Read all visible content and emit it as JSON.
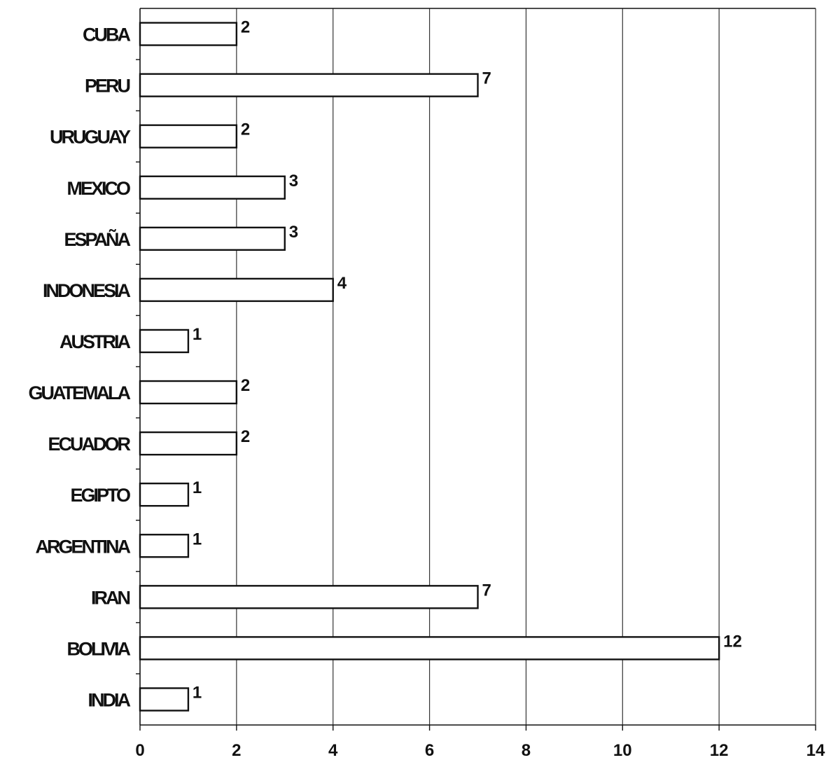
{
  "chart_data": {
    "type": "bar",
    "orientation": "horizontal",
    "categories": [
      "CUBA",
      "PERU",
      "URUGUAY",
      "MEXICO",
      "ESPAÑA",
      "INDONESIA",
      "AUSTRIA",
      "GUATEMALA",
      "ECUADOR",
      "EGIPTO",
      "ARGENTINA",
      "IRAN",
      "BOLIVIA",
      "INDIA"
    ],
    "values": [
      2,
      7,
      2,
      3,
      3,
      4,
      1,
      2,
      2,
      1,
      1,
      7,
      12,
      1
    ],
    "data_labels": [
      "2",
      "7",
      "2",
      "3",
      "3",
      "4",
      "1",
      "2",
      "2",
      "1",
      "1",
      "7",
      "12",
      "1"
    ],
    "x_ticks": [
      "0",
      "2",
      "4",
      "6",
      "8",
      "10",
      "12",
      "14"
    ],
    "xlim": [
      0,
      14
    ],
    "grid": "vertical",
    "legend": "none",
    "bar_fill": "#ffffff",
    "bar_stroke": "#111111",
    "grid_color": "#333333"
  }
}
